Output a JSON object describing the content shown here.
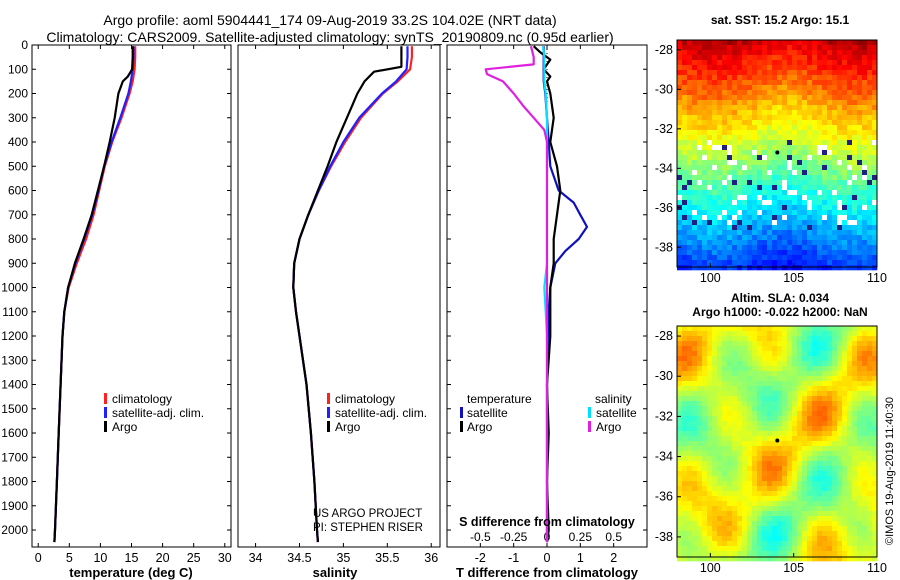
{
  "figure": {
    "title_line1": "Argo profile: aoml 5904441_174 09-Aug-2019 33.2S 104.02E (NRT data)",
    "title_line2": "Climatology: CARS2009. Satellite-adjusted climatology: synTS_20190809.nc (0.95d earlier)",
    "watermark": "©IMOS 19-Aug-2019 11:40:30",
    "credit_line1": "US ARGO PROJECT",
    "credit_line2": "PI: STEPHEN RISER"
  },
  "colors": {
    "climatology": "#ff2020",
    "satellite_adj": "#2020ff",
    "argo": "#000000",
    "satellite_t": "#1010c0",
    "satellite_s": "#00e0ff",
    "argo_s": "#e020e0"
  },
  "chart_data": [
    {
      "type": "line",
      "id": "temperature",
      "xlabel": "temperature (deg C)",
      "ylabel": "depth",
      "xlim": [
        -1,
        31
      ],
      "ylim": [
        2070,
        0
      ],
      "xticks": [
        0,
        5,
        10,
        15,
        20,
        25,
        30
      ],
      "yticks": [
        0,
        100,
        200,
        300,
        400,
        500,
        600,
        700,
        800,
        900,
        1000,
        1100,
        1200,
        1300,
        1400,
        1500,
        1600,
        1700,
        1800,
        1900,
        2000
      ],
      "legend": [
        "climatology",
        "satellite-adj. clim.",
        "Argo"
      ],
      "series": [
        {
          "name": "climatology",
          "depth": [
            5,
            50,
            100,
            150,
            200,
            300,
            400,
            500,
            600,
            700,
            800,
            900,
            1000,
            1100,
            1200,
            1400,
            1600,
            1800,
            2000,
            2050
          ],
          "values": [
            15.6,
            15.6,
            15.5,
            15.2,
            14.7,
            13.4,
            11.9,
            10.7,
            9.8,
            8.9,
            7.7,
            6.2,
            4.9,
            4.2,
            3.9,
            3.6,
            3.3,
            3.0,
            2.7,
            2.6
          ]
        },
        {
          "name": "satellite-adj. clim.",
          "depth": [
            5,
            50,
            100,
            150,
            200,
            300,
            400,
            500,
            600,
            700,
            800,
            900,
            1000,
            1100,
            1200,
            1400,
            1600,
            1800,
            2000,
            2050
          ],
          "values": [
            15.3,
            15.3,
            15.2,
            14.9,
            14.5,
            13.2,
            11.8,
            10.6,
            9.7,
            8.7,
            7.4,
            6.0,
            4.8,
            4.2,
            3.9,
            3.6,
            3.3,
            3.0,
            2.7,
            2.6
          ]
        },
        {
          "name": "Argo",
          "depth": [
            5,
            50,
            100,
            130,
            150,
            200,
            300,
            400,
            500,
            600,
            700,
            800,
            900,
            1000,
            1100,
            1200,
            1400,
            1600,
            1800,
            2000,
            2050
          ],
          "values": [
            15.2,
            15.2,
            15.1,
            14.4,
            13.6,
            12.9,
            12.3,
            11.5,
            10.6,
            9.6,
            8.6,
            7.3,
            5.9,
            4.8,
            4.2,
            3.9,
            3.6,
            3.3,
            3.0,
            2.7,
            2.6
          ]
        }
      ]
    },
    {
      "type": "line",
      "id": "salinity",
      "xlabel": "salinity",
      "ylabel": "depth",
      "xlim": [
        33.8,
        36.1
      ],
      "ylim": [
        2070,
        0
      ],
      "xticks": [
        34,
        34.5,
        35,
        35.5,
        36
      ],
      "xticklabels": [
        "34",
        "34.5",
        "35",
        "35.5",
        "36"
      ],
      "legend": [
        "climatology",
        "satellite-adj. clim.",
        "Argo"
      ],
      "series": [
        {
          "name": "climatology",
          "depth": [
            5,
            50,
            100,
            150,
            200,
            300,
            400,
            500,
            600,
            700,
            800,
            900,
            1000,
            1100,
            1200,
            1400,
            1600,
            1800,
            2000,
            2050
          ],
          "values": [
            35.78,
            35.78,
            35.76,
            35.62,
            35.45,
            35.2,
            35.02,
            34.86,
            34.72,
            34.6,
            34.5,
            34.44,
            34.43,
            34.46,
            34.5,
            34.58,
            34.63,
            34.67,
            34.7,
            34.71
          ]
        },
        {
          "name": "satellite-adj. clim.",
          "depth": [
            5,
            50,
            100,
            150,
            200,
            300,
            400,
            500,
            600,
            700,
            800,
            900,
            1000,
            1100,
            1200,
            1400,
            1600,
            1800,
            2000,
            2050
          ],
          "values": [
            35.73,
            35.73,
            35.72,
            35.6,
            35.44,
            35.18,
            35.0,
            34.85,
            34.72,
            34.6,
            34.5,
            34.44,
            34.43,
            34.46,
            34.5,
            34.58,
            34.63,
            34.67,
            34.7,
            34.71
          ]
        },
        {
          "name": "Argo",
          "depth": [
            5,
            50,
            90,
            110,
            150,
            200,
            250,
            300,
            400,
            500,
            600,
            700,
            800,
            900,
            1000,
            1100,
            1200,
            1400,
            1600,
            1800,
            2000,
            2050
          ],
          "values": [
            35.66,
            35.66,
            35.66,
            35.35,
            35.24,
            35.16,
            35.1,
            35.04,
            34.92,
            34.82,
            34.71,
            34.6,
            34.5,
            34.44,
            34.43,
            34.46,
            34.5,
            34.58,
            34.63,
            34.67,
            34.7,
            34.71
          ]
        }
      ]
    },
    {
      "type": "line",
      "id": "difference",
      "xlabel": "T difference from climatology",
      "xlabel_top": "S difference from climatology",
      "ylabel": "depth",
      "xlim": [
        -3,
        3
      ],
      "ylim": [
        2070,
        0
      ],
      "xticks": [
        -2,
        -1,
        0,
        1,
        2
      ],
      "s_ticklabels": [
        "-0.5",
        "-0.25",
        "0",
        "0.25",
        "0.5"
      ],
      "legend_temperature_title": "temperature",
      "legend_salinity_title": "salinity",
      "legend": [
        "satellite",
        "Argo",
        "satellite",
        "Argo"
      ],
      "series": [
        {
          "name": "temperature satellite",
          "depth": [
            5,
            50,
            100,
            150,
            200,
            300,
            400,
            500,
            600,
            650,
            700,
            750,
            800,
            850,
            900,
            1000,
            1100,
            1200,
            1400,
            1600,
            1800,
            2000,
            2050
          ],
          "values": [
            -0.1,
            -0.1,
            -0.1,
            -0.1,
            -0.05,
            0.0,
            0.05,
            0.1,
            0.35,
            0.8,
            1.0,
            1.2,
            0.95,
            0.55,
            0.25,
            0.1,
            0.05,
            0.05,
            0.0,
            0.0,
            0.0,
            0.0,
            0.0
          ]
        },
        {
          "name": "temperature Argo",
          "depth": [
            5,
            30,
            60,
            100,
            130,
            150,
            200,
            300,
            400,
            500,
            600,
            700,
            800,
            900,
            1000,
            1100,
            1200,
            1400,
            1600,
            1800,
            2000,
            2050
          ],
          "values": [
            -0.4,
            -0.2,
            0.1,
            -0.1,
            0.1,
            0.0,
            0.1,
            0.2,
            0.1,
            0.3,
            0.4,
            0.3,
            0.2,
            0.2,
            0.1,
            0.1,
            0.1,
            0.0,
            0.05,
            0.0,
            0.05,
            0.0
          ]
        },
        {
          "name": "salinity satellite",
          "depth": [
            5,
            50,
            100,
            150,
            200,
            300,
            400,
            500,
            600,
            700,
            800,
            900,
            1000,
            1100,
            1200,
            1400,
            1600,
            1800,
            2000,
            2050
          ],
          "values": [
            -0.03,
            -0.02,
            -0.02,
            -0.02,
            -0.01,
            0.0,
            0.0,
            0.0,
            0.0,
            0.0,
            0.0,
            0.0,
            -0.02,
            -0.01,
            0.0,
            0.0,
            0.0,
            0.0,
            0.0,
            0.0
          ]
        },
        {
          "name": "salinity Argo",
          "depth": [
            5,
            50,
            80,
            100,
            120,
            150,
            200,
            250,
            300,
            350,
            400,
            500,
            600,
            700,
            800,
            900,
            1000,
            1100,
            1200,
            1400,
            1600,
            1800,
            2000,
            2050
          ],
          "values": [
            -0.12,
            -0.1,
            -0.1,
            -0.46,
            -0.45,
            -0.33,
            -0.25,
            -0.18,
            -0.1,
            -0.02,
            0.0,
            0.0,
            0.0,
            0.0,
            0.0,
            0.0,
            0.0,
            0.0,
            0.0,
            0.0,
            0.0,
            0.0,
            0.0,
            0.0
          ]
        }
      ]
    },
    {
      "type": "heatmap",
      "id": "sst-map",
      "title": "sat. SST: 15.2 Argo: 15.1",
      "xlim": [
        98,
        110
      ],
      "ylim": [
        -39,
        -27.5
      ],
      "xticks": [
        100,
        105,
        110
      ],
      "yticks": [
        -28,
        -30,
        -32,
        -34,
        -36,
        -38
      ]
    },
    {
      "type": "heatmap",
      "id": "sla-map",
      "title_line1": "Altim. SLA: 0.034",
      "title_line2": "Argo h1000: -0.022 h2000: NaN",
      "xlim": [
        98,
        110
      ],
      "ylim": [
        -39,
        -27.5
      ],
      "xticks": [
        100,
        105,
        110
      ],
      "yticks": [
        -28,
        -30,
        -32,
        -34,
        -36,
        -38
      ]
    }
  ]
}
